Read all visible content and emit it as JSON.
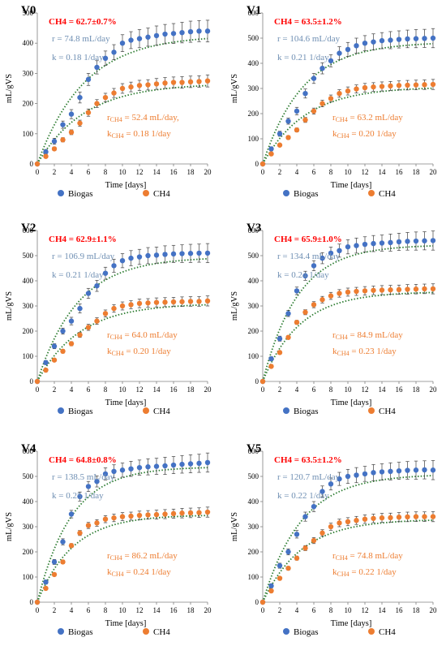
{
  "colors": {
    "biogas": "#4472c4",
    "ch4": "#ed7d31",
    "fit": "#2e7d32",
    "annotation_red": "#ff0000",
    "biogas_text": "#6f8fb3"
  },
  "chart_data": [
    {
      "type": "scatter",
      "title": "V0",
      "xlabel": "Time [days]",
      "ylabel": "mL/gVS",
      "xlim": [
        0,
        20
      ],
      "ylim": [
        0,
        500
      ],
      "xticks": [
        "0",
        "2",
        "4",
        "6",
        "8",
        "10",
        "12",
        "14",
        "16",
        "18",
        "20"
      ],
      "yticks": [
        "0",
        "100",
        "200",
        "300",
        "400",
        "500"
      ],
      "ch4_share": "CH4 = 62.7±0.7%",
      "biogas_fit": {
        "r": "r = 74.8 mL/day",
        "k": "k = 0.18 1/day"
      },
      "ch4_fit": {
        "r_label": "r",
        "r_sub": "CH4",
        "r_value": " = 52.4 mL/day,",
        "k_label": "k",
        "k_sub": "CH4",
        "k_value": " = 0.18 1/day"
      },
      "legend": [
        "Biogas",
        "CH4"
      ],
      "series": [
        {
          "name": "Biogas",
          "x": [
            0,
            1,
            2,
            3,
            4,
            5,
            6,
            7,
            8,
            9,
            10,
            11,
            12,
            13,
            14,
            15,
            16,
            17,
            18,
            19,
            20
          ],
          "y": [
            0,
            40,
            75,
            130,
            165,
            220,
            280,
            320,
            350,
            370,
            400,
            410,
            415,
            420,
            425,
            430,
            432,
            435,
            438,
            440,
            440
          ],
          "err": [
            0,
            8,
            10,
            12,
            15,
            18,
            20,
            22,
            24,
            25,
            28,
            28,
            30,
            30,
            32,
            32,
            33,
            34,
            35,
            35,
            36
          ]
        },
        {
          "name": "CH4",
          "x": [
            0,
            1,
            2,
            3,
            4,
            5,
            6,
            7,
            8,
            9,
            10,
            11,
            12,
            13,
            14,
            15,
            16,
            17,
            18,
            19,
            20
          ],
          "y": [
            0,
            25,
            50,
            80,
            105,
            135,
            170,
            200,
            220,
            235,
            250,
            255,
            260,
            262,
            265,
            268,
            270,
            270,
            272,
            273,
            275
          ],
          "err": [
            0,
            5,
            6,
            7,
            8,
            10,
            12,
            13,
            14,
            15,
            16,
            16,
            17,
            17,
            18,
            18,
            18,
            19,
            19,
            19,
            20
          ]
        }
      ]
    },
    {
      "type": "scatter",
      "title": "V1",
      "xlabel": "Time [days]",
      "ylabel": "mL/gVS",
      "xlim": [
        0,
        20
      ],
      "ylim": [
        0,
        600
      ],
      "xticks": [
        "0",
        "2",
        "4",
        "6",
        "8",
        "10",
        "12",
        "14",
        "16",
        "18",
        "20"
      ],
      "yticks": [
        "0",
        "100",
        "200",
        "300",
        "400",
        "500",
        "600"
      ],
      "ch4_share": "CH4 = 63.5±1.2%",
      "biogas_fit": {
        "r": "r = 104.6 mL/day",
        "k": "k = 0.21 1/day"
      },
      "ch4_fit": {
        "r_label": "r",
        "r_sub": "CH4",
        "r_value": " = 63.2 mL/day",
        "k_label": "k",
        "k_sub": "CH4",
        "k_value": " = 0.20 1/day"
      },
      "legend": [
        "Biogas",
        "CH4"
      ],
      "series": [
        {
          "name": "Biogas",
          "x": [
            0,
            1,
            2,
            3,
            4,
            5,
            6,
            7,
            8,
            9,
            10,
            11,
            12,
            13,
            14,
            15,
            16,
            17,
            18,
            19,
            20
          ],
          "y": [
            0,
            60,
            120,
            170,
            210,
            280,
            340,
            380,
            410,
            440,
            455,
            470,
            480,
            485,
            490,
            492,
            495,
            497,
            498,
            499,
            500
          ],
          "err": [
            0,
            8,
            10,
            12,
            15,
            18,
            20,
            22,
            24,
            26,
            28,
            30,
            30,
            32,
            32,
            34,
            34,
            35,
            36,
            36,
            38
          ]
        },
        {
          "name": "CH4",
          "x": [
            0,
            1,
            2,
            3,
            4,
            5,
            6,
            7,
            8,
            9,
            10,
            11,
            12,
            13,
            14,
            15,
            16,
            17,
            18,
            19,
            20
          ],
          "y": [
            0,
            40,
            75,
            105,
            135,
            175,
            210,
            240,
            260,
            280,
            290,
            298,
            303,
            306,
            308,
            310,
            312,
            313,
            314,
            315,
            316
          ],
          "err": [
            0,
            5,
            6,
            7,
            8,
            10,
            12,
            13,
            14,
            15,
            16,
            16,
            17,
            17,
            18,
            18,
            18,
            19,
            19,
            19,
            20
          ]
        }
      ]
    },
    {
      "type": "scatter",
      "title": "V2",
      "xlabel": "Time [days]",
      "ylabel": "mL/gVS",
      "xlim": [
        0,
        20
      ],
      "ylim": [
        0,
        600
      ],
      "xticks": [
        "0",
        "2",
        "4",
        "6",
        "8",
        "10",
        "12",
        "14",
        "16",
        "18",
        "20"
      ],
      "yticks": [
        "0",
        "100",
        "200",
        "300",
        "400",
        "500",
        "600"
      ],
      "ch4_share": "CH4 = 62.9±1.1%",
      "biogas_fit": {
        "r": "r = 106.9 mL/day",
        "k": "k = 0.21 1/day"
      },
      "ch4_fit": {
        "r_label": "r",
        "r_sub": "CH4",
        "r_value": " = 64.0 mL/day",
        "k_label": "k",
        "k_sub": "CH4",
        "k_value": " = 0.20 1/day"
      },
      "legend": [
        "Biogas",
        "CH4"
      ],
      "series": [
        {
          "name": "Biogas",
          "x": [
            0,
            1,
            2,
            3,
            4,
            5,
            6,
            7,
            8,
            9,
            10,
            11,
            12,
            13,
            14,
            15,
            16,
            17,
            18,
            19,
            20
          ],
          "y": [
            0,
            75,
            140,
            200,
            240,
            290,
            350,
            380,
            430,
            460,
            480,
            490,
            495,
            500,
            502,
            505,
            507,
            508,
            509,
            510,
            510
          ],
          "err": [
            0,
            8,
            10,
            12,
            15,
            18,
            20,
            22,
            24,
            26,
            28,
            30,
            30,
            32,
            32,
            34,
            34,
            35,
            36,
            36,
            38
          ]
        },
        {
          "name": "CH4",
          "x": [
            0,
            1,
            2,
            3,
            4,
            5,
            6,
            7,
            8,
            9,
            10,
            11,
            12,
            13,
            14,
            15,
            16,
            17,
            18,
            19,
            20
          ],
          "y": [
            0,
            45,
            85,
            120,
            150,
            185,
            215,
            240,
            270,
            290,
            300,
            305,
            310,
            312,
            314,
            315,
            316,
            317,
            318,
            318,
            320
          ],
          "err": [
            0,
            5,
            6,
            7,
            8,
            10,
            12,
            13,
            14,
            15,
            16,
            16,
            17,
            17,
            18,
            18,
            18,
            19,
            19,
            19,
            20
          ]
        }
      ]
    },
    {
      "type": "scatter",
      "title": "V3",
      "xlabel": "Time [days]",
      "ylabel": "mL/gVS",
      "xlim": [
        0,
        20
      ],
      "ylim": [
        0,
        600
      ],
      "xticks": [
        "0",
        "2",
        "4",
        "6",
        "8",
        "10",
        "12",
        "14",
        "16",
        "18",
        "20"
      ],
      "yticks": [
        "0",
        "100",
        "200",
        "300",
        "400",
        "500",
        "600"
      ],
      "ch4_share": "CH4 = 65.9±1.0%",
      "biogas_fit": {
        "r": "r = 134.4 mL/day",
        "k": "k = 0.24 1/day"
      },
      "ch4_fit": {
        "r_label": "r",
        "r_sub": "CH4",
        "r_value": " = 84.9 mL/day",
        "k_label": "k",
        "k_sub": "CH4",
        "k_value": " = 0.23 1/day"
      },
      "legend": [
        "Biogas",
        "CH4"
      ],
      "series": [
        {
          "name": "Biogas",
          "x": [
            0,
            1,
            2,
            3,
            4,
            5,
            6,
            7,
            8,
            9,
            10,
            11,
            12,
            13,
            14,
            15,
            16,
            17,
            18,
            19,
            20
          ],
          "y": [
            0,
            90,
            170,
            270,
            360,
            420,
            460,
            490,
            510,
            520,
            535,
            540,
            545,
            548,
            550,
            552,
            555,
            557,
            558,
            559,
            560
          ],
          "err": [
            0,
            8,
            10,
            12,
            15,
            18,
            20,
            22,
            24,
            26,
            28,
            30,
            30,
            32,
            32,
            34,
            34,
            35,
            36,
            36,
            38
          ]
        },
        {
          "name": "CH4",
          "x": [
            0,
            1,
            2,
            3,
            4,
            5,
            6,
            7,
            8,
            9,
            10,
            11,
            12,
            13,
            14,
            15,
            16,
            17,
            18,
            19,
            20
          ],
          "y": [
            0,
            60,
            115,
            175,
            235,
            275,
            305,
            325,
            340,
            350,
            355,
            358,
            360,
            362,
            363,
            364,
            365,
            366,
            367,
            368,
            368
          ],
          "err": [
            0,
            5,
            6,
            7,
            8,
            10,
            12,
            13,
            14,
            15,
            16,
            16,
            17,
            17,
            18,
            18,
            18,
            19,
            19,
            19,
            20
          ]
        }
      ]
    },
    {
      "type": "scatter",
      "title": "V4",
      "xlabel": "Time [days]",
      "ylabel": "mL/gVS",
      "xlim": [
        0,
        20
      ],
      "ylim": [
        0,
        600
      ],
      "xticks": [
        "0",
        "2",
        "4",
        "6",
        "8",
        "10",
        "12",
        "14",
        "16",
        "18",
        "20"
      ],
      "yticks": [
        "0",
        "100",
        "200",
        "300",
        "400",
        "500",
        "600"
      ],
      "ch4_share": "CH4 = 64.8±0.8%",
      "biogas_fit": {
        "r": "r = 138.5 mL/day",
        "k": "k = 0.25 1/day"
      },
      "ch4_fit": {
        "r_label": "r",
        "r_sub": "CH4",
        "r_value": " = 86.2 mL/day",
        "k_label": "k",
        "k_sub": "CH4",
        "k_value": " = 0.24 1/day"
      },
      "legend": [
        "Biogas",
        "CH4"
      ],
      "series": [
        {
          "name": "Biogas",
          "x": [
            0,
            1,
            2,
            3,
            4,
            5,
            6,
            7,
            8,
            9,
            10,
            11,
            12,
            13,
            14,
            15,
            16,
            17,
            18,
            19,
            20
          ],
          "y": [
            0,
            80,
            160,
            240,
            350,
            420,
            460,
            480,
            510,
            520,
            525,
            530,
            535,
            538,
            540,
            542,
            545,
            548,
            550,
            552,
            555
          ],
          "err": [
            0,
            8,
            10,
            12,
            15,
            18,
            20,
            22,
            24,
            26,
            28,
            30,
            30,
            32,
            32,
            34,
            34,
            35,
            36,
            36,
            38
          ]
        },
        {
          "name": "CH4",
          "x": [
            0,
            1,
            2,
            3,
            4,
            5,
            6,
            7,
            8,
            9,
            10,
            11,
            12,
            13,
            14,
            15,
            16,
            17,
            18,
            19,
            20
          ],
          "y": [
            0,
            55,
            110,
            160,
            225,
            275,
            305,
            315,
            330,
            335,
            340,
            342,
            345,
            347,
            348,
            350,
            352,
            354,
            355,
            356,
            358
          ],
          "err": [
            0,
            5,
            6,
            7,
            8,
            10,
            12,
            13,
            14,
            15,
            16,
            16,
            17,
            17,
            18,
            18,
            18,
            19,
            19,
            19,
            20
          ]
        }
      ]
    },
    {
      "type": "scatter",
      "title": "V5",
      "xlabel": "Time [days]",
      "ylabel": "mL/gVS",
      "xlim": [
        0,
        20
      ],
      "ylim": [
        0,
        600
      ],
      "xticks": [
        "0",
        "2",
        "4",
        "6",
        "8",
        "10",
        "12",
        "14",
        "16",
        "18",
        "20"
      ],
      "yticks": [
        "0",
        "100",
        "200",
        "300",
        "400",
        "500",
        "600"
      ],
      "ch4_share": "CH4 = 63.5±1.2%",
      "biogas_fit": {
        "r": "r = 120.7 mL/day",
        "k": "k = 0.22 1/day"
      },
      "ch4_fit": {
        "r_label": "r",
        "r_sub": "CH4",
        "r_value": " = 74.8 mL/day",
        "k_label": "k",
        "k_sub": "CH4",
        "k_value": " = 0.22 1/day"
      },
      "legend": [
        "Biogas",
        "CH4"
      ],
      "series": [
        {
          "name": "Biogas",
          "x": [
            0,
            1,
            2,
            3,
            4,
            5,
            6,
            7,
            8,
            9,
            10,
            11,
            12,
            13,
            14,
            15,
            16,
            17,
            18,
            19,
            20
          ],
          "y": [
            0,
            65,
            145,
            200,
            270,
            340,
            380,
            440,
            470,
            490,
            500,
            505,
            510,
            515,
            518,
            520,
            522,
            524,
            525,
            526,
            525
          ],
          "err": [
            0,
            8,
            10,
            12,
            15,
            18,
            20,
            22,
            24,
            26,
            28,
            30,
            30,
            32,
            32,
            34,
            34,
            35,
            36,
            36,
            38
          ]
        },
        {
          "name": "CH4",
          "x": [
            0,
            1,
            2,
            3,
            4,
            5,
            6,
            7,
            8,
            9,
            10,
            11,
            12,
            13,
            14,
            15,
            16,
            17,
            18,
            19,
            20
          ],
          "y": [
            0,
            45,
            95,
            135,
            175,
            215,
            245,
            275,
            300,
            315,
            320,
            325,
            330,
            333,
            335,
            336,
            338,
            339,
            340,
            340,
            340
          ],
          "err": [
            0,
            5,
            6,
            7,
            8,
            10,
            12,
            13,
            14,
            15,
            16,
            16,
            17,
            17,
            18,
            18,
            18,
            19,
            19,
            19,
            20
          ]
        }
      ]
    }
  ]
}
